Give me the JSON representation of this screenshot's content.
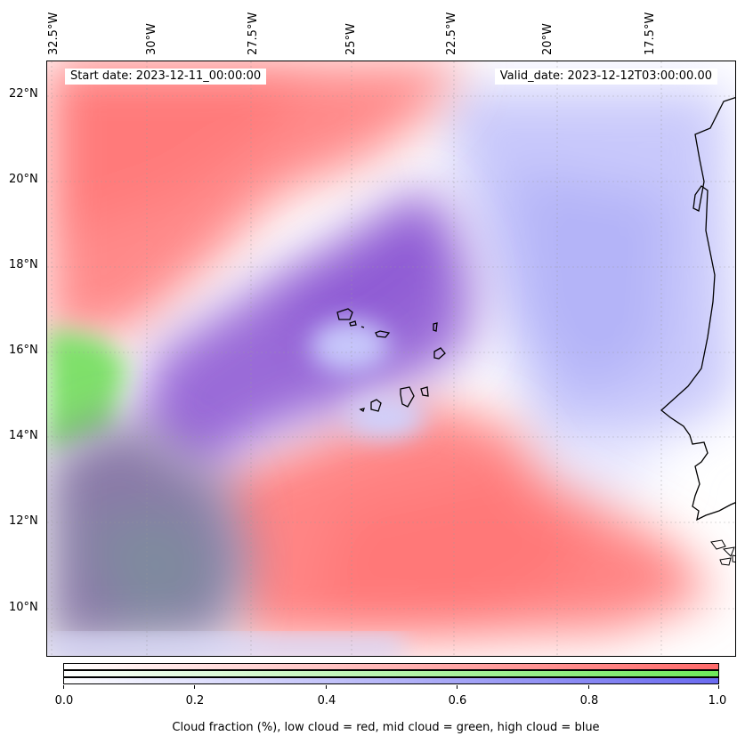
{
  "map": {
    "start_date": "Start date: 2023-12-11_00:00:00",
    "valid_date": "Valid_date: 2023-12-12T03:00:00.00",
    "lon_labels": [
      "32.5°W",
      "30°W",
      "27.5°W",
      "25°W",
      "22.5°W",
      "20°W",
      "17.5°W"
    ],
    "lat_labels": [
      "22°N",
      "20°N",
      "18°N",
      "16°N",
      "14°N",
      "12°N",
      "10°N"
    ],
    "colors": {
      "low_cloud": "#ff7a7a",
      "mid_cloud": "#8ee85a",
      "high_cloud": "#8a8af5",
      "coastline": "#000000"
    }
  },
  "colorbar": {
    "ticks": [
      "0.0",
      "0.2",
      "0.4",
      "0.6",
      "0.8",
      "1.0"
    ],
    "tick_values": [
      0.0,
      0.2,
      0.4,
      0.6,
      0.8,
      1.0
    ],
    "title": "Cloud fraction (%), low cloud = red, mid cloud = green, high cloud = blue",
    "rows": [
      "red",
      "green",
      "blue"
    ]
  }
}
